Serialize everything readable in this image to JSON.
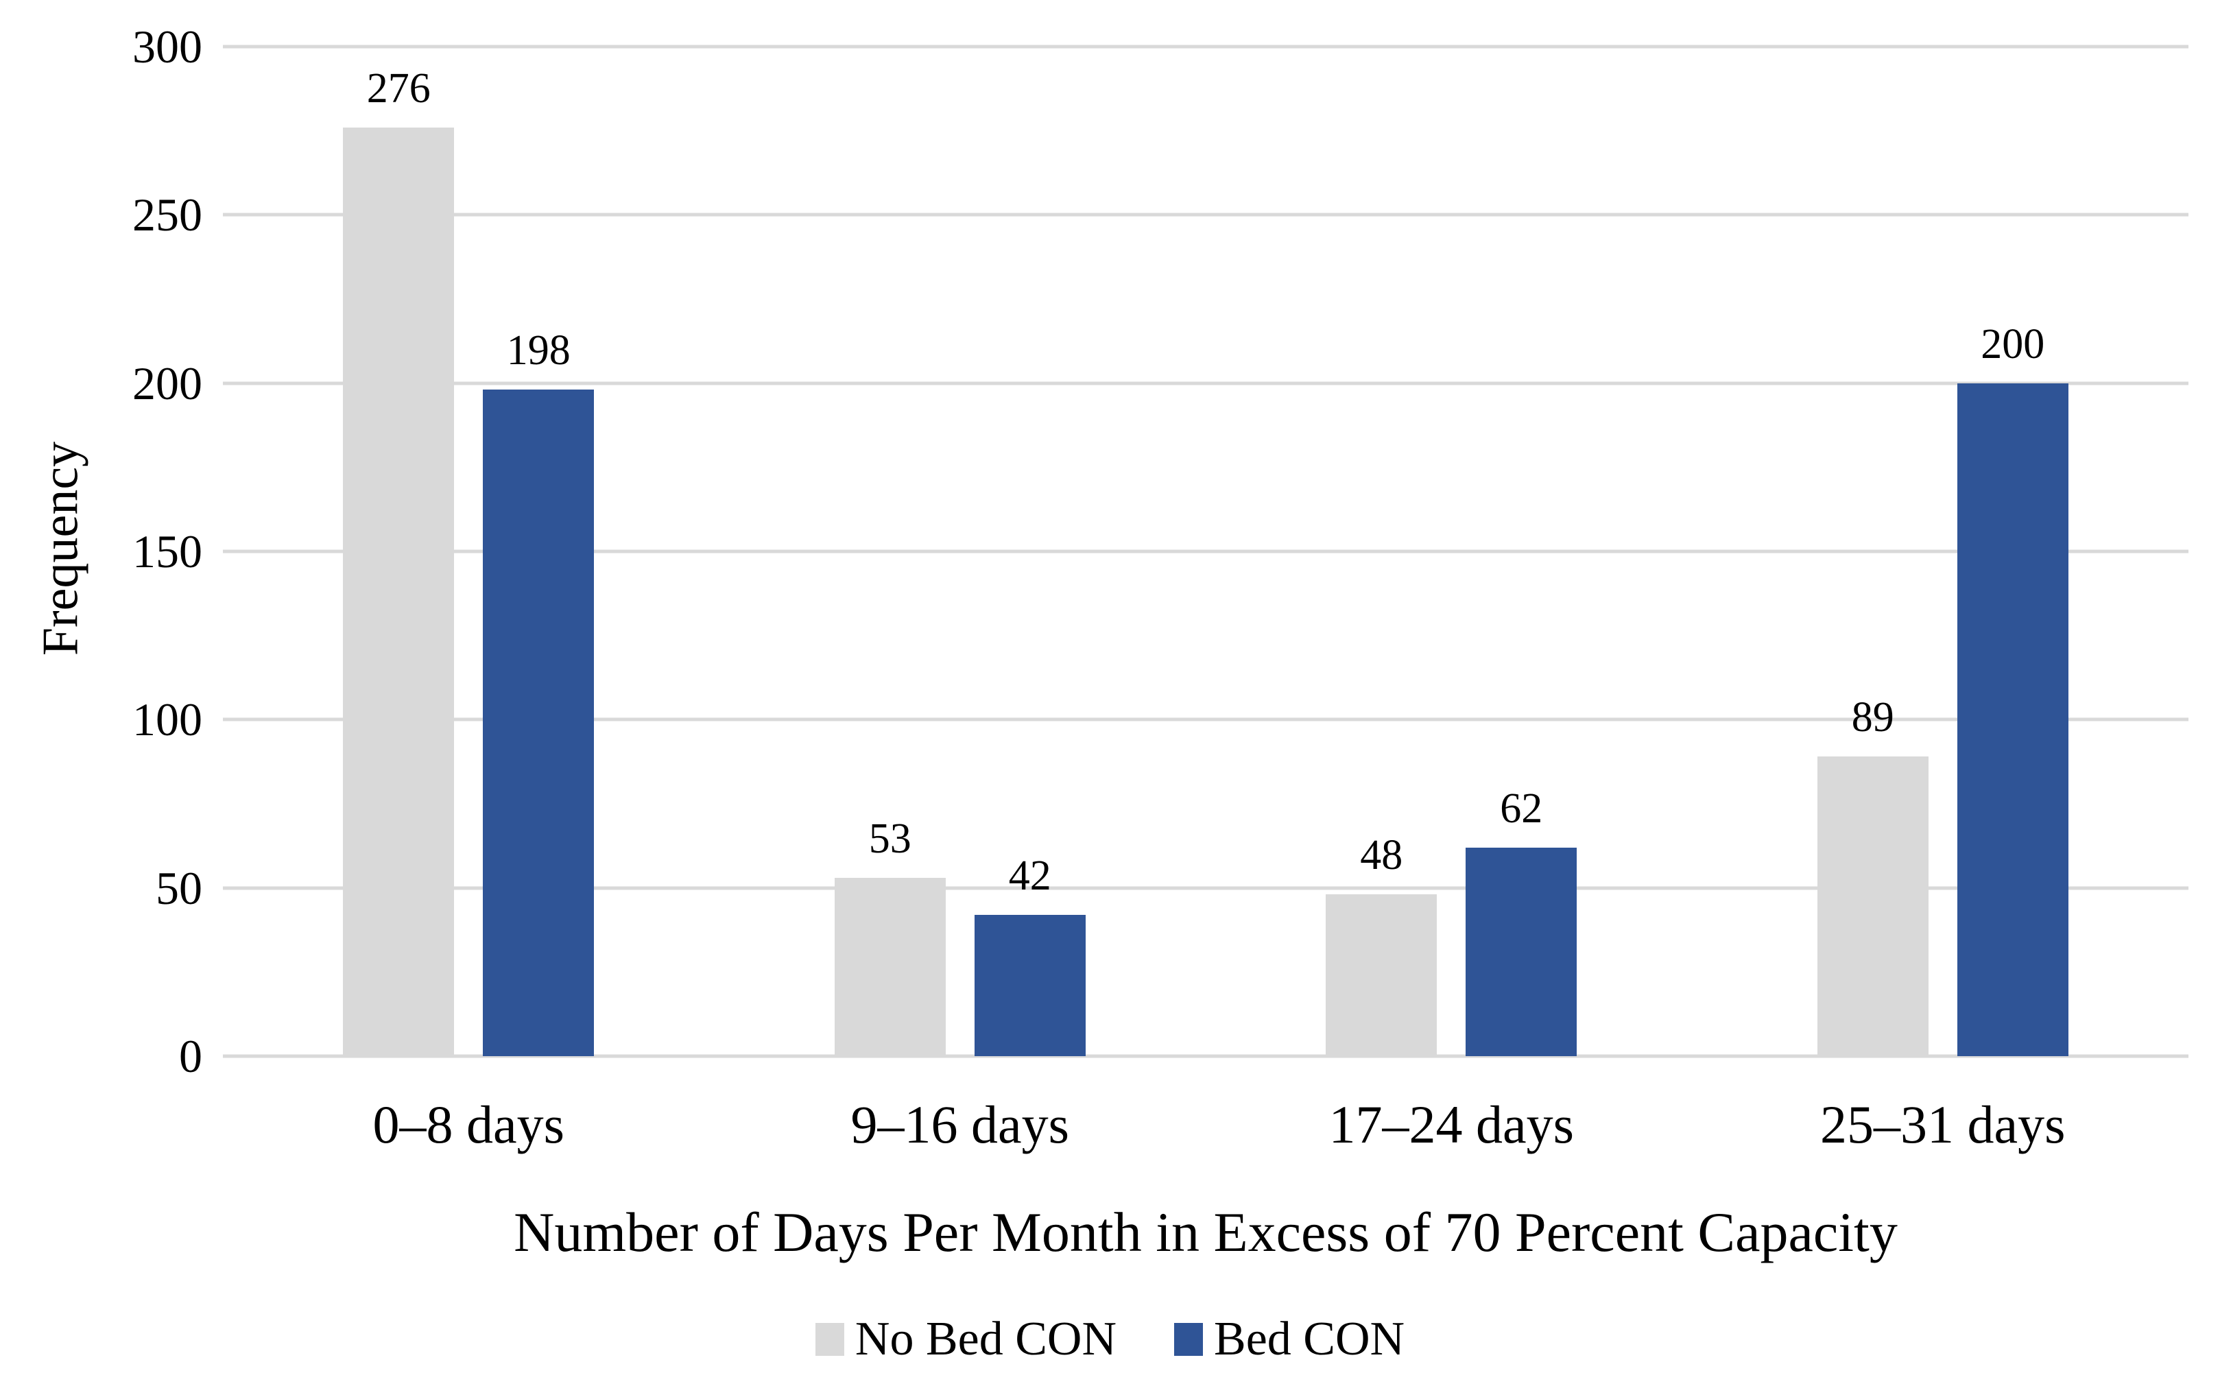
{
  "chart_data": {
    "type": "bar",
    "title": "",
    "categories": [
      "0–8 days",
      "9–16 days",
      "17–24 days",
      "25–31 days"
    ],
    "series": [
      {
        "name": "No Bed CON",
        "color": "#D9D9D9",
        "values": [
          276,
          53,
          48,
          89
        ]
      },
      {
        "name": "Bed CON",
        "color": "#2F5496",
        "values": [
          198,
          42,
          62,
          200
        ]
      }
    ],
    "xlabel": "Number of Days Per Month in Excess of 70 Percent Capacity",
    "ylabel": "Frequency",
    "ylim": [
      0,
      300
    ],
    "yticks": [
      0,
      50,
      100,
      150,
      200,
      250,
      300
    ],
    "grid": true,
    "legend_position": "bottom",
    "colors": {
      "gridline": "#D9D9D9",
      "background": "#FFFFFF",
      "text": "#000000"
    }
  }
}
